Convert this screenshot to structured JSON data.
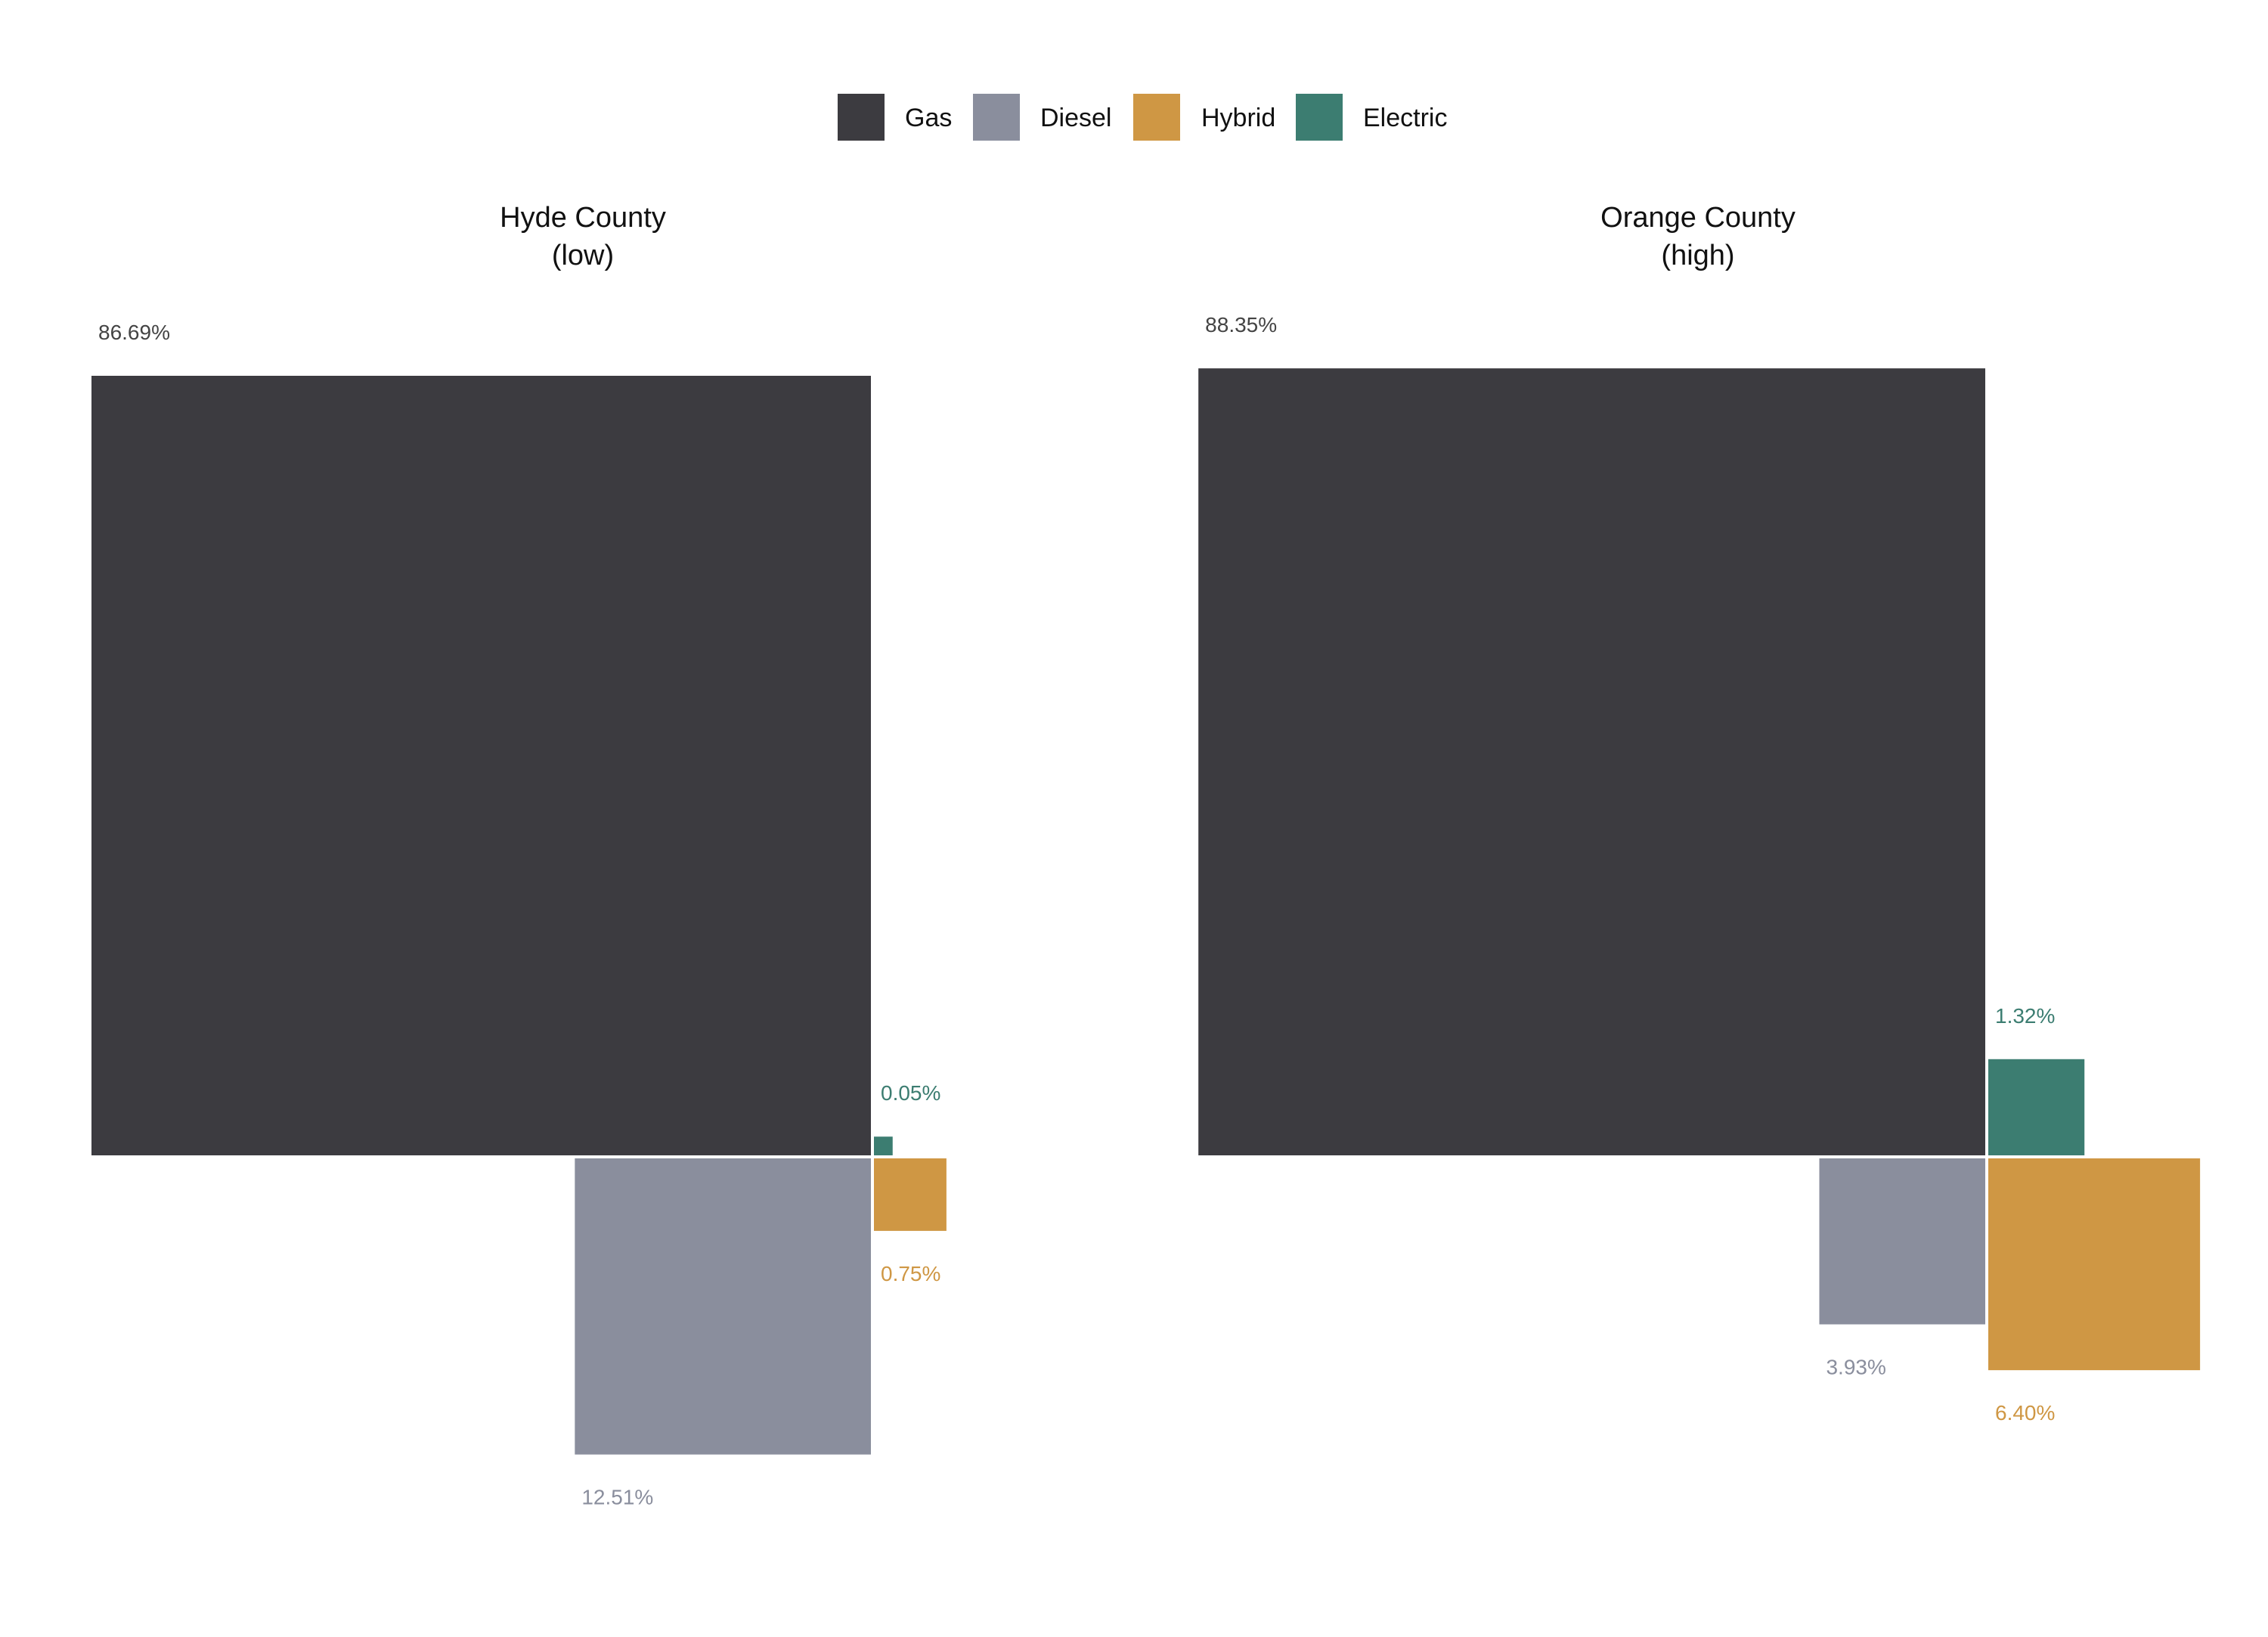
{
  "chart_data": {
    "type": "square-area",
    "legend": {
      "placement": "top-center",
      "items": [
        {
          "name": "Gas",
          "color": "#3c3b40"
        },
        {
          "name": "Diesel",
          "color": "#8a8e9d"
        },
        {
          "name": "Hybrid",
          "color": "#cf9744"
        },
        {
          "name": "Electric",
          "color": "#3c7d71"
        }
      ]
    },
    "series": [
      "Gas",
      "Diesel",
      "Hybrid",
      "Electric"
    ],
    "colors": {
      "Gas": "#3c3b40",
      "Diesel": "#8a8e9d",
      "Hybrid": "#cf9744",
      "Electric": "#3c7d71"
    },
    "panels": [
      {
        "title_line1": "Hyde County",
        "title_line2": "(low)",
        "values": {
          "Gas": 86.69,
          "Diesel": 12.51,
          "Hybrid": 0.75,
          "Electric": 0.05
        },
        "labels": {
          "Gas": "86.69%",
          "Diesel": "12.51%",
          "Hybrid": "0.75%",
          "Electric": "0.05%"
        }
      },
      {
        "title_line1": "Orange County",
        "title_line2": "(high)",
        "values": {
          "Gas": 88.35,
          "Diesel": 3.93,
          "Hybrid": 6.4,
          "Electric": 1.32
        },
        "labels": {
          "Gas": "88.35%",
          "Diesel": "3.93%",
          "Hybrid": "6.40%",
          "Electric": "1.32%"
        }
      }
    ]
  }
}
